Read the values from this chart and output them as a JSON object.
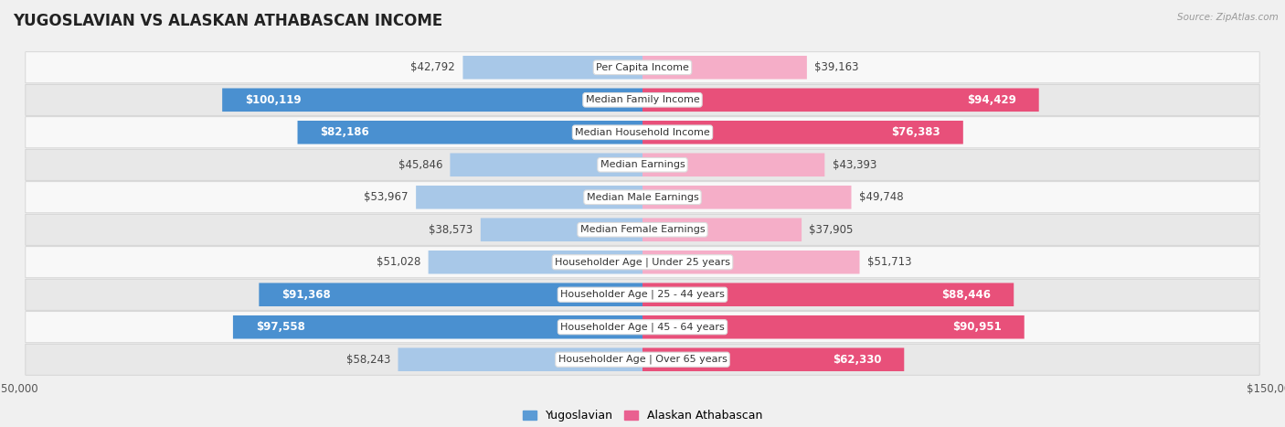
{
  "title": "YUGOSLAVIAN VS ALASKAN ATHABASCAN INCOME",
  "source": "Source: ZipAtlas.com",
  "categories": [
    "Per Capita Income",
    "Median Family Income",
    "Median Household Income",
    "Median Earnings",
    "Median Male Earnings",
    "Median Female Earnings",
    "Householder Age | Under 25 years",
    "Householder Age | 25 - 44 years",
    "Householder Age | 45 - 64 years",
    "Householder Age | Over 65 years"
  ],
  "yugoslavian_values": [
    42792,
    100119,
    82186,
    45846,
    53967,
    38573,
    51028,
    91368,
    97558,
    58243
  ],
  "alaskan_values": [
    39163,
    94429,
    76383,
    43393,
    49748,
    37905,
    51713,
    88446,
    90951,
    62330
  ],
  "yugoslavian_labels": [
    "$42,792",
    "$100,119",
    "$82,186",
    "$45,846",
    "$53,967",
    "$38,573",
    "$51,028",
    "$91,368",
    "$97,558",
    "$58,243"
  ],
  "alaskan_labels": [
    "$39,163",
    "$94,429",
    "$76,383",
    "$43,393",
    "$49,748",
    "$37,905",
    "$51,713",
    "$88,446",
    "$90,951",
    "$62,330"
  ],
  "yugoslav_color_light": "#a8c8e8",
  "yugoslav_color_dark": "#4a90d0",
  "alaskan_color_light": "#f5aec8",
  "alaskan_color_dark": "#e8507a",
  "max_value": 150000,
  "bar_height": 0.72,
  "background_color": "#f0f0f0",
  "row_bg_even": "#f8f8f8",
  "row_bg_odd": "#e8e8e8",
  "label_bg_color": "#ffffff",
  "label_fontsize": 8.5,
  "title_fontsize": 12,
  "inside_threshold": 60000,
  "legend_color_yugo": "#5b9bd5",
  "legend_color_alaskan": "#e96090"
}
